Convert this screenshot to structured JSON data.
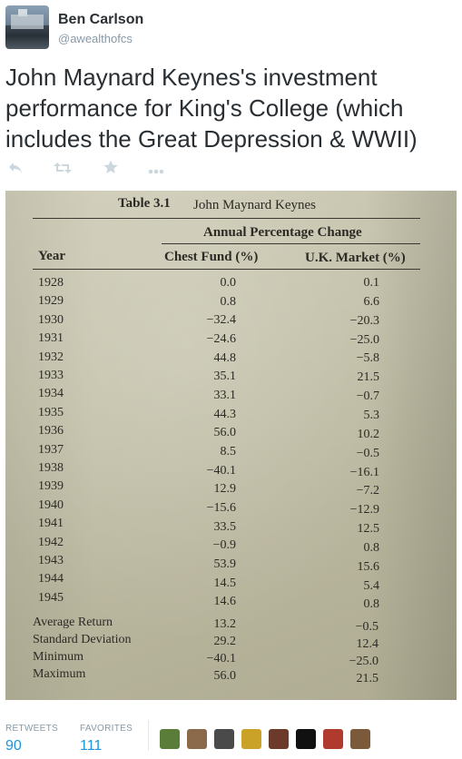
{
  "author": {
    "name": "Ben Carlson",
    "handle": "@awealthofcs"
  },
  "tweet": {
    "text": "John Maynard Keynes's investment performance for King's College (which includes the Great Depression & WWII)"
  },
  "actions": {
    "reply_icon": "reply-icon",
    "retweet_icon": "retweet-icon",
    "favorite_icon": "star-icon",
    "more_icon": "more-icon"
  },
  "photo": {
    "table_number": "Table 3.1",
    "table_title": "John Maynard Keynes",
    "group_header": "Annual Percentage Change",
    "col_year": "Year",
    "col_fund": "Chest Fund (%)",
    "col_market": "U.K. Market (%)",
    "rows": [
      {
        "year": "1928",
        "fund": "0.0",
        "market": "0.1"
      },
      {
        "year": "1929",
        "fund": "0.8",
        "market": "6.6"
      },
      {
        "year": "1930",
        "fund": "−32.4",
        "market": "−20.3"
      },
      {
        "year": "1931",
        "fund": "−24.6",
        "market": "−25.0"
      },
      {
        "year": "1932",
        "fund": "44.8",
        "market": "−5.8"
      },
      {
        "year": "1933",
        "fund": "35.1",
        "market": "21.5"
      },
      {
        "year": "1934",
        "fund": "33.1",
        "market": "−0.7"
      },
      {
        "year": "1935",
        "fund": "44.3",
        "market": "5.3"
      },
      {
        "year": "1936",
        "fund": "56.0",
        "market": "10.2"
      },
      {
        "year": "1937",
        "fund": "8.5",
        "market": "−0.5"
      },
      {
        "year": "1938",
        "fund": "−40.1",
        "market": "−16.1"
      },
      {
        "year": "1939",
        "fund": "12.9",
        "market": "−7.2"
      },
      {
        "year": "1940",
        "fund": "−15.6",
        "market": "−12.9"
      },
      {
        "year": "1941",
        "fund": "33.5",
        "market": "12.5"
      },
      {
        "year": "1942",
        "fund": "−0.9",
        "market": "0.8"
      },
      {
        "year": "1943",
        "fund": "53.9",
        "market": "15.6"
      },
      {
        "year": "1944",
        "fund": "14.5",
        "market": "5.4"
      },
      {
        "year": "1945",
        "fund": "14.6",
        "market": "0.8"
      }
    ],
    "summary": [
      {
        "label": "Average Return",
        "fund": "13.2",
        "market": "−0.5"
      },
      {
        "label": "Standard Deviation",
        "fund": "29.2",
        "market": "12.4"
      },
      {
        "label": "Minimum",
        "fund": "−40.1",
        "market": "−25.0"
      },
      {
        "label": "Maximum",
        "fund": "56.0",
        "market": "21.5"
      }
    ]
  },
  "stats": {
    "retweets_label": "RETWEETS",
    "retweets": "90",
    "favorites_label": "FAVORITES",
    "favorites": "111"
  },
  "favoriters": [
    {
      "name": "avatar-1",
      "color": "#5a7d3a"
    },
    {
      "name": "avatar-2",
      "color": "#8a6a4a"
    },
    {
      "name": "avatar-3",
      "color": "#4a4a4a"
    },
    {
      "name": "avatar-4",
      "color": "#c9a227"
    },
    {
      "name": "avatar-5",
      "color": "#6b3a2a"
    },
    {
      "name": "avatar-6",
      "color": "#111111"
    },
    {
      "name": "avatar-7",
      "color": "#b03a2e"
    },
    {
      "name": "avatar-8",
      "color": "#7a5a3a"
    }
  ]
}
